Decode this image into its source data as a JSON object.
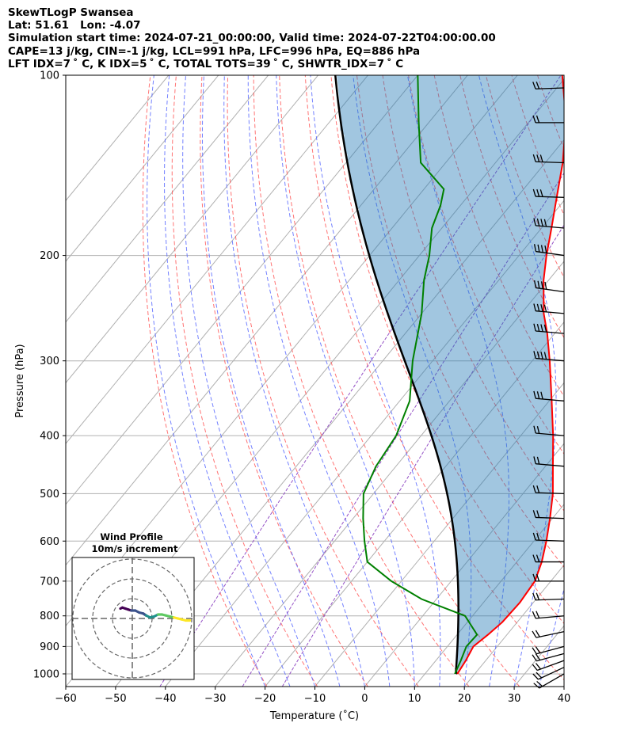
{
  "header": {
    "line1": "SkewTLogP Swansea",
    "line2": "Lat: 51.61   Lon: -4.07",
    "line3": "Simulation start time: 2024-07-21_00:00:00, Valid time: 2024-07-22T04:00:00.00",
    "line4": "CAPE=13 j/kg, CIN=-1 j/kg, LCL=991 hPa, LFC=996 hPa, EQ=886 hPa",
    "line5": "LFT IDX=7 ˚ C, K IDX=5 ˚ C, TOTAL TOTS=39 ˚ C, SHWTR_IDX=7 ˚ C"
  },
  "chart_data": {
    "type": "line",
    "subtype": "skew-T log-P",
    "xlabel": "Temperature (˚C)",
    "ylabel": "Pressure (hPa)",
    "xlim": [
      -60,
      40
    ],
    "ylim": [
      1050,
      100
    ],
    "y_scale": "log",
    "x_ticks": [
      -60,
      -50,
      -40,
      -30,
      -20,
      -10,
      0,
      10,
      20,
      30,
      40
    ],
    "x_tick_labels": [
      "−60",
      "−50",
      "−40",
      "−30",
      "−20",
      "−10",
      "0",
      "10",
      "20",
      "30",
      "40"
    ],
    "y_ticks": [
      1000,
      900,
      800,
      700,
      600,
      500,
      400,
      300,
      200,
      100
    ],
    "y_tick_labels": [
      "1000",
      "900",
      "800",
      "700",
      "600",
      "500",
      "400",
      "300",
      "200",
      "100"
    ],
    "grid": true,
    "series": [
      {
        "role": "temperature",
        "color": "#ff0000",
        "points": [
          {
            "p": 1000,
            "t": 16.5
          },
          {
            "p": 950,
            "t": 16.0
          },
          {
            "p": 900,
            "t": 15.2
          },
          {
            "p": 860,
            "t": 16.2
          },
          {
            "p": 820,
            "t": 17.0
          },
          {
            "p": 760,
            "t": 17.3
          },
          {
            "p": 700,
            "t": 16.8
          },
          {
            "p": 650,
            "t": 15.0
          },
          {
            "p": 600,
            "t": 12.5
          },
          {
            "p": 550,
            "t": 9.5
          },
          {
            "p": 500,
            "t": 6.0
          },
          {
            "p": 450,
            "t": 1.5
          },
          {
            "p": 400,
            "t": -3.5
          },
          {
            "p": 350,
            "t": -9.5
          },
          {
            "p": 300,
            "t": -16.5
          },
          {
            "p": 270,
            "t": -21.5
          },
          {
            "p": 250,
            "t": -25.5
          },
          {
            "p": 220,
            "t": -31.0
          },
          {
            "p": 200,
            "t": -34.5
          },
          {
            "p": 180,
            "t": -38.0
          },
          {
            "p": 160,
            "t": -42.0
          },
          {
            "p": 140,
            "t": -46.5
          },
          {
            "p": 120,
            "t": -52.5
          },
          {
            "p": 110,
            "t": -56.5
          },
          {
            "p": 100,
            "t": -61.0
          }
        ]
      },
      {
        "role": "dewpoint",
        "color": "#008000",
        "points": [
          {
            "p": 1000,
            "t": 16.0
          },
          {
            "p": 950,
            "t": 15.0
          },
          {
            "p": 900,
            "t": 13.8
          },
          {
            "p": 860,
            "t": 14.0
          },
          {
            "p": 800,
            "t": 8.5
          },
          {
            "p": 750,
            "t": -3.0
          },
          {
            "p": 700,
            "t": -12.0
          },
          {
            "p": 650,
            "t": -20.0
          },
          {
            "p": 600,
            "t": -24.0
          },
          {
            "p": 550,
            "t": -28.0
          },
          {
            "p": 500,
            "t": -32.0
          },
          {
            "p": 450,
            "t": -34.0
          },
          {
            "p": 400,
            "t": -35.0
          },
          {
            "p": 350,
            "t": -38.0
          },
          {
            "p": 300,
            "t": -44.0
          },
          {
            "p": 250,
            "t": -50.0
          },
          {
            "p": 220,
            "t": -55.0
          },
          {
            "p": 200,
            "t": -58.0
          },
          {
            "p": 180,
            "t": -62.0
          },
          {
            "p": 165,
            "t": -64.0
          },
          {
            "p": 155,
            "t": -66.0
          },
          {
            "p": 140,
            "t": -75.0
          },
          {
            "p": 120,
            "t": -82.0
          },
          {
            "p": 100,
            "t": -90.0
          }
        ]
      },
      {
        "role": "parcel",
        "color": "#000000",
        "description_source": "lifted parcel profile (solid black line)",
        "surface": {
          "p": 1000,
          "t": 16.5,
          "td": 16.0
        }
      }
    ],
    "reference_lines": {
      "dry_adiabats_theta_K": [
        250,
        260,
        270,
        280,
        290,
        300,
        310,
        320,
        330,
        340,
        350,
        360,
        370,
        380,
        390,
        400,
        410,
        420,
        430,
        440
      ],
      "moist_adiabats_start_T_C": [
        -20,
        -15,
        -10,
        -5,
        0,
        5,
        10,
        15,
        20,
        25,
        30,
        35,
        40
      ],
      "isotherms_C": [
        -140,
        -130,
        -120,
        -110,
        -100,
        -90,
        -80,
        -70,
        -60,
        -50,
        -40,
        -30,
        -20,
        -10,
        0,
        10,
        20,
        30,
        40
      ],
      "mixing_ratio_lines_g_kg": [
        0.1,
        0.5,
        1.0
      ]
    },
    "wind_barbs": [
      {
        "p": 1000,
        "speed_kt": 20,
        "dir_deg": 240
      },
      {
        "p": 975,
        "speed_kt": 20,
        "dir_deg": 245
      },
      {
        "p": 950,
        "speed_kt": 20,
        "dir_deg": 250
      },
      {
        "p": 925,
        "speed_kt": 20,
        "dir_deg": 255
      },
      {
        "p": 900,
        "speed_kt": 20,
        "dir_deg": 255
      },
      {
        "p": 850,
        "speed_kt": 20,
        "dir_deg": 258
      },
      {
        "p": 800,
        "speed_kt": 20,
        "dir_deg": 265
      },
      {
        "p": 750,
        "speed_kt": 20,
        "dir_deg": 268
      },
      {
        "p": 700,
        "speed_kt": 20,
        "dir_deg": 270
      },
      {
        "p": 650,
        "speed_kt": 20,
        "dir_deg": 270
      },
      {
        "p": 600,
        "speed_kt": 20,
        "dir_deg": 272
      },
      {
        "p": 550,
        "speed_kt": 20,
        "dir_deg": 272
      },
      {
        "p": 500,
        "speed_kt": 20,
        "dir_deg": 272
      },
      {
        "p": 450,
        "speed_kt": 20,
        "dir_deg": 275
      },
      {
        "p": 400,
        "speed_kt": 20,
        "dir_deg": 275
      },
      {
        "p": 350,
        "speed_kt": 30,
        "dir_deg": 275
      },
      {
        "p": 300,
        "speed_kt": 40,
        "dir_deg": 275
      },
      {
        "p": 270,
        "speed_kt": 40,
        "dir_deg": 275
      },
      {
        "p": 250,
        "speed_kt": 40,
        "dir_deg": 275
      },
      {
        "p": 230,
        "speed_kt": 40,
        "dir_deg": 278
      },
      {
        "p": 200,
        "speed_kt": 40,
        "dir_deg": 278
      },
      {
        "p": 180,
        "speed_kt": 40,
        "dir_deg": 275
      },
      {
        "p": 160,
        "speed_kt": 30,
        "dir_deg": 272
      },
      {
        "p": 140,
        "speed_kt": 30,
        "dir_deg": 272
      },
      {
        "p": 120,
        "speed_kt": 20,
        "dir_deg": 270
      },
      {
        "p": 105,
        "speed_kt": 20,
        "dir_deg": 268
      }
    ],
    "hodograph": {
      "title": "Wind Profile",
      "subtitle": "10m/s increment",
      "rings_ms": [
        10,
        20,
        30
      ],
      "points_uv": [
        [
          -6.0,
          5.0
        ],
        [
          -5.0,
          5.5
        ],
        [
          -3.5,
          5.0
        ],
        [
          -2.0,
          4.5
        ],
        [
          -0.5,
          4.0
        ],
        [
          1.5,
          4.0
        ],
        [
          3.5,
          3.0
        ],
        [
          5.5,
          2.5
        ],
        [
          7.0,
          1.5
        ],
        [
          9.0,
          0.5
        ],
        [
          11.0,
          1.0
        ],
        [
          13.0,
          2.0
        ],
        [
          15.0,
          2.0
        ],
        [
          17.0,
          1.5
        ],
        [
          19.0,
          1.0
        ],
        [
          21.0,
          0.5
        ],
        [
          23.0,
          0.0
        ],
        [
          25.0,
          -0.5
        ],
        [
          27.0,
          -1.0
        ],
        [
          29.0,
          -1.0
        ]
      ]
    }
  }
}
